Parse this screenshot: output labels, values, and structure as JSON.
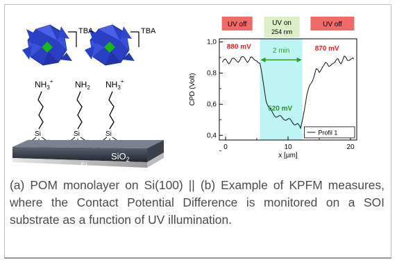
{
  "figure_left": {
    "tba_1": "TBA",
    "tba_2": "TBA",
    "amine_1": "NH",
    "amine_1_sub": "3",
    "amine_1_sup": "+",
    "amine_2": "NH",
    "amine_2_sub": "2",
    "amine_3": "NH",
    "amine_3_sub": "3",
    "amine_3_sup": "+",
    "si_label": "Si",
    "o_label": "O",
    "sio2": "SiO",
    "sio2_sub": "2",
    "substrate": "Si"
  },
  "chart_data": {
    "type": "line",
    "ylabel": "CPD (Volt)",
    "xlabel": "x [µm]",
    "xlim": [
      -1,
      21
    ],
    "ylim": [
      0.37,
      1.02
    ],
    "xticks": [
      0,
      10,
      20
    ],
    "yticks": [
      0.4,
      0.6,
      0.8,
      1.0
    ],
    "ytick_labels": [
      "0,4",
      "0,6",
      "0,8",
      "1,0"
    ],
    "legend": "Profil 1",
    "legend_position": "bottom-right",
    "grid": false,
    "uv_on_region": [
      5.5,
      12.3
    ],
    "uv_labels": [
      {
        "text": "UV off",
        "color": "#f06a6a"
      },
      {
        "text": "UV on",
        "subtext": "254 nm",
        "color": "#dcefc8"
      },
      {
        "text": "UV off",
        "color": "#f06a6a"
      }
    ],
    "annotations": [
      {
        "text": "880 mV",
        "color": "#e02020"
      },
      {
        "text": "870 mV",
        "color": "#e02020"
      },
      {
        "text": "520 mV",
        "color": "#2e8b2e"
      },
      {
        "text": "2 min",
        "color": "#2e9a2e"
      }
    ],
    "series": [
      {
        "x": [
          -0.5,
          0,
          0.5,
          1,
          1.5,
          2,
          2.5,
          3,
          3.5,
          4,
          4.5,
          5,
          5.5,
          6,
          6.5,
          7,
          7.5,
          8,
          8.5,
          9,
          9.5,
          10,
          10.5,
          11,
          11.5,
          12,
          12.5,
          13,
          13.5,
          14,
          14.5,
          15,
          15.5,
          16,
          16.5,
          17,
          17.5,
          18,
          18.5,
          19,
          19.5,
          20,
          20.5
        ],
        "y": [
          0.87,
          0.88,
          0.87,
          0.89,
          0.88,
          0.88,
          0.9,
          0.89,
          0.88,
          0.9,
          0.88,
          0.89,
          0.86,
          0.74,
          0.63,
          0.57,
          0.54,
          0.53,
          0.52,
          0.51,
          0.51,
          0.5,
          0.49,
          0.48,
          0.47,
          0.44,
          0.55,
          0.65,
          0.72,
          0.77,
          0.82,
          0.8,
          0.85,
          0.86,
          0.84,
          0.87,
          0.86,
          0.89,
          0.87,
          0.9,
          0.88,
          0.9,
          0.89
        ]
      }
    ]
  },
  "caption": "(a) POM monolayer on Si(100) || (b) Example of KPFM measures, where the Contact Potential Difference is monitored on a SOI substrate as a function of UV illumination."
}
